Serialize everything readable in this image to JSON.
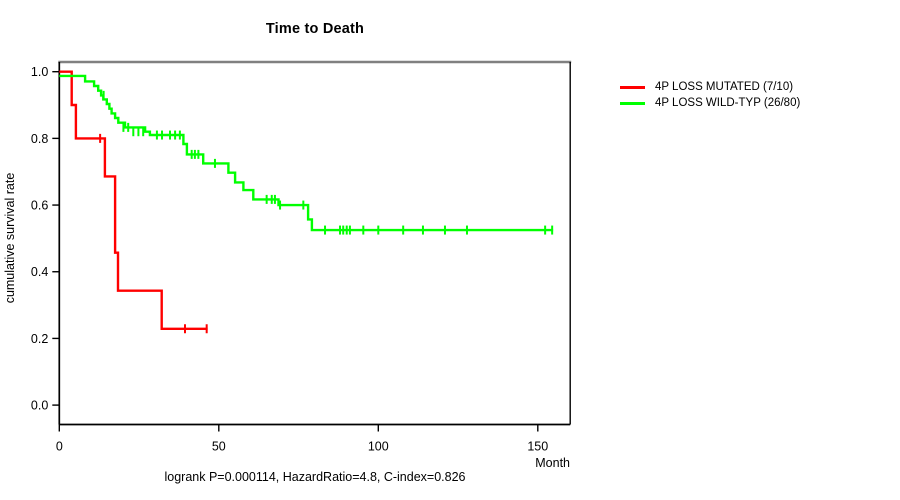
{
  "chart_data": {
    "type": "line",
    "subtype": "kaplan_meier_step",
    "title": "Time to Death",
    "xlabel": "Month",
    "ylabel": "cumulative survival rate",
    "footer": "logrank P=0.000114, HazardRatio=4.8, C-index=0.826",
    "xlim": [
      0,
      160
    ],
    "ylim": [
      0,
      1
    ],
    "xticks": [
      0,
      50,
      100,
      150
    ],
    "yticks": [
      0,
      0.2,
      0.4,
      0.6,
      0.8,
      1
    ],
    "grid": false,
    "legend_position": "right-outside",
    "colors": {
      "mutated": "#ff0000",
      "wildtype": "#00ff00",
      "box_top": "#808080",
      "axis": "#000000"
    },
    "legend": [
      {
        "label": "4P LOSS MUTATED (7/10)",
        "color": "#ff0000"
      },
      {
        "label": "4P LOSS WILD-TYP (26/80)",
        "color": "#00ff00"
      }
    ],
    "series": [
      {
        "name": "4P LOSS MUTATED (7/10)",
        "color": "#ff0000",
        "n": 10,
        "events": 7,
        "steps": [
          [
            0,
            1.0
          ],
          [
            3.9,
            0.9
          ],
          [
            5.2,
            0.8
          ],
          [
            14.3,
            0.686
          ],
          [
            17.5,
            0.457
          ],
          [
            18.4,
            0.343
          ],
          [
            32.1,
            0.229
          ]
        ],
        "end": 46.5,
        "censors": [
          [
            12.8,
            0.8
          ],
          [
            39.4,
            0.229
          ],
          [
            46.2,
            0.229
          ]
        ]
      },
      {
        "name": "4P LOSS WILD-TYP (26/80)",
        "color": "#00ff00",
        "n": 80,
        "events": 26,
        "steps": [
          [
            0,
            0.9875
          ],
          [
            8.1,
            0.971
          ],
          [
            10.9,
            0.957
          ],
          [
            12.2,
            0.943
          ],
          [
            13.1,
            0.929
          ],
          [
            13.8,
            0.917
          ],
          [
            14.9,
            0.903
          ],
          [
            15.7,
            0.889
          ],
          [
            16.4,
            0.875
          ],
          [
            17.5,
            0.861
          ],
          [
            18.5,
            0.847
          ],
          [
            20.6,
            0.833
          ],
          [
            26.9,
            0.82
          ],
          [
            28.4,
            0.81
          ],
          [
            38.9,
            0.783
          ],
          [
            40.0,
            0.752
          ],
          [
            45.1,
            0.725
          ],
          [
            53.0,
            0.697
          ],
          [
            55.1,
            0.668
          ],
          [
            57.7,
            0.645
          ],
          [
            60.8,
            0.617
          ],
          [
            68.7,
            0.6
          ],
          [
            78.0,
            0.557
          ],
          [
            79.2,
            0.525
          ]
        ],
        "end": 154.8,
        "censors": [
          [
            13.9,
            0.929
          ],
          [
            20.1,
            0.833
          ],
          [
            21.6,
            0.833
          ],
          [
            23.2,
            0.82
          ],
          [
            24.8,
            0.82
          ],
          [
            26.3,
            0.82
          ],
          [
            30.6,
            0.81
          ],
          [
            32.2,
            0.81
          ],
          [
            34.7,
            0.81
          ],
          [
            36.3,
            0.81
          ],
          [
            37.8,
            0.81
          ],
          [
            41.5,
            0.752
          ],
          [
            42.5,
            0.752
          ],
          [
            43.6,
            0.752
          ],
          [
            48.8,
            0.725
          ],
          [
            65.0,
            0.617
          ],
          [
            66.6,
            0.617
          ],
          [
            67.6,
            0.617
          ],
          [
            69.2,
            0.6
          ],
          [
            76.5,
            0.6
          ],
          [
            83.3,
            0.525
          ],
          [
            88.0,
            0.525
          ],
          [
            89.0,
            0.525
          ],
          [
            90.1,
            0.525
          ],
          [
            91.1,
            0.525
          ],
          [
            95.3,
            0.525
          ],
          [
            100.0,
            0.525
          ],
          [
            107.8,
            0.525
          ],
          [
            114.0,
            0.525
          ],
          [
            120.9,
            0.525
          ],
          [
            127.8,
            0.525
          ],
          [
            152.3,
            0.525
          ],
          [
            154.5,
            0.525
          ]
        ]
      }
    ]
  }
}
